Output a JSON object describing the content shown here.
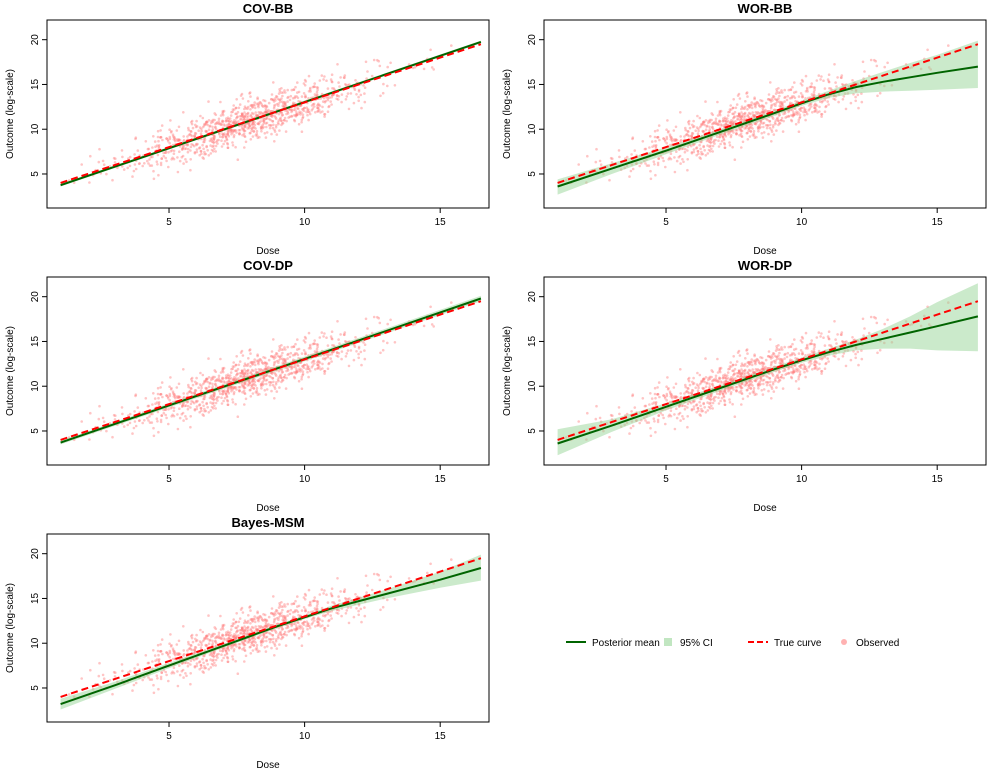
{
  "chart_data": [
    {
      "type": "scatter",
      "title": "COV-BB",
      "xlabel": "Dose",
      "ylabel": "Outcome (log-scale)",
      "xlim": [
        0.5,
        16.8
      ],
      "ylim": [
        1.2,
        22.2
      ],
      "xticks": [
        5,
        10,
        15
      ],
      "yticks": [
        5,
        10,
        15,
        20
      ],
      "series": [
        {
          "name": "Posterior mean",
          "x": [
            1.0,
            16.5
          ],
          "y": [
            3.75,
            19.75
          ]
        },
        {
          "name": "True curve",
          "x": [
            1.0,
            16.5
          ],
          "y": [
            4.0,
            19.5
          ]
        },
        {
          "name": "95% CI",
          "x": [
            1.0,
            16.5
          ],
          "lower": [
            3.6,
            19.6
          ],
          "upper": [
            3.9,
            19.9
          ]
        }
      ]
    },
    {
      "type": "scatter",
      "title": "WOR-BB",
      "xlabel": "Dose",
      "ylabel": "Outcome (log-scale)",
      "xlim": [
        0.5,
        16.8
      ],
      "ylim": [
        1.2,
        22.2
      ],
      "xticks": [
        5,
        10,
        15
      ],
      "yticks": [
        5,
        10,
        15,
        20
      ],
      "series": [
        {
          "name": "Posterior mean",
          "x": [
            1.0,
            3.0,
            5.0,
            7.0,
            9.0,
            10.0,
            11.0,
            12.0,
            13.0,
            14.0,
            15.0,
            16.5
          ],
          "y": [
            3.6,
            5.6,
            7.6,
            9.7,
            11.8,
            12.9,
            13.9,
            14.7,
            15.3,
            15.8,
            16.3,
            17.0
          ]
        },
        {
          "name": "True curve",
          "x": [
            1.0,
            16.5
          ],
          "y": [
            4.0,
            19.5
          ]
        },
        {
          "name": "95% CI",
          "x": [
            1.0,
            3.0,
            5.0,
            7.0,
            9.0,
            10.0,
            11.0,
            12.0,
            13.0,
            14.0,
            15.0,
            16.5
          ],
          "lower": [
            2.7,
            5.0,
            7.2,
            9.4,
            11.5,
            12.6,
            13.5,
            14.0,
            14.2,
            14.3,
            14.4,
            14.6
          ],
          "upper": [
            4.4,
            6.2,
            8.0,
            10.0,
            12.1,
            13.2,
            14.3,
            15.4,
            16.4,
            17.4,
            18.3,
            19.9
          ]
        }
      ]
    },
    {
      "type": "scatter",
      "title": "COV-DP",
      "xlabel": "Dose",
      "ylabel": "Outcome (log-scale)",
      "xlim": [
        0.5,
        16.8
      ],
      "ylim": [
        1.2,
        22.2
      ],
      "xticks": [
        5,
        10,
        15
      ],
      "yticks": [
        5,
        10,
        15,
        20
      ],
      "series": [
        {
          "name": "Posterior mean",
          "x": [
            1.0,
            16.5
          ],
          "y": [
            3.7,
            19.8
          ]
        },
        {
          "name": "True curve",
          "x": [
            1.0,
            16.5
          ],
          "y": [
            4.0,
            19.5
          ]
        },
        {
          "name": "95% CI",
          "x": [
            1.0,
            16.5
          ],
          "lower": [
            3.5,
            19.5
          ],
          "upper": [
            3.9,
            20.1
          ]
        }
      ]
    },
    {
      "type": "scatter",
      "title": "WOR-DP",
      "xlabel": "Dose",
      "ylabel": "Outcome (log-scale)",
      "xlim": [
        0.5,
        16.8
      ],
      "ylim": [
        1.2,
        22.2
      ],
      "xticks": [
        5,
        10,
        15
      ],
      "yticks": [
        5,
        10,
        15,
        20
      ],
      "series": [
        {
          "name": "Posterior mean",
          "x": [
            1.0,
            3.0,
            5.0,
            7.0,
            9.0,
            10.0,
            11.0,
            12.0,
            13.0,
            14.0,
            15.0,
            16.5
          ],
          "y": [
            3.6,
            5.6,
            7.7,
            9.8,
            11.9,
            12.9,
            13.8,
            14.6,
            15.3,
            16.0,
            16.7,
            17.8
          ]
        },
        {
          "name": "True curve",
          "x": [
            1.0,
            16.5
          ],
          "y": [
            4.0,
            19.5
          ]
        },
        {
          "name": "95% CI",
          "x": [
            1.0,
            3.0,
            5.0,
            7.0,
            9.0,
            10.0,
            11.0,
            12.0,
            13.0,
            14.0,
            15.0,
            16.5
          ],
          "lower": [
            2.3,
            4.9,
            7.3,
            9.5,
            11.6,
            12.6,
            13.4,
            14.0,
            14.2,
            14.2,
            14.0,
            13.9
          ],
          "upper": [
            5.2,
            6.3,
            8.1,
            10.1,
            12.2,
            13.2,
            14.2,
            15.2,
            16.4,
            17.8,
            19.4,
            21.5
          ]
        }
      ]
    },
    {
      "type": "scatter",
      "title": "Bayes-MSM",
      "xlabel": "Dose",
      "ylabel": "Outcome (log-scale)",
      "xlim": [
        0.5,
        16.8
      ],
      "ylim": [
        1.2,
        22.2
      ],
      "xticks": [
        5,
        10,
        15
      ],
      "yticks": [
        5,
        10,
        15,
        20
      ],
      "series": [
        {
          "name": "Posterior mean",
          "x": [
            1.0,
            3.0,
            5.0,
            7.0,
            9.0,
            10.0,
            11.0,
            12.0,
            13.0,
            14.0,
            15.0,
            16.5
          ],
          "y": [
            3.2,
            5.3,
            7.5,
            9.7,
            11.9,
            12.9,
            13.9,
            14.7,
            15.5,
            16.3,
            17.1,
            18.4
          ]
        },
        {
          "name": "True curve",
          "x": [
            1.0,
            16.5
          ],
          "y": [
            4.0,
            19.5
          ]
        },
        {
          "name": "95% CI",
          "x": [
            1.0,
            3.0,
            5.0,
            7.0,
            9.0,
            10.0,
            11.0,
            12.0,
            13.0,
            14.0,
            15.0,
            16.5
          ],
          "lower": [
            2.6,
            4.9,
            7.2,
            9.5,
            11.7,
            12.7,
            13.6,
            14.3,
            15.0,
            15.6,
            16.2,
            17.0
          ],
          "upper": [
            3.8,
            5.7,
            7.8,
            9.9,
            12.1,
            13.1,
            14.2,
            15.1,
            16.0,
            17.0,
            18.0,
            19.9
          ]
        }
      ]
    }
  ],
  "legend": {
    "items": [
      {
        "label": "Posterior mean",
        "kind": "line",
        "color": "#006400"
      },
      {
        "label": "95% CI",
        "kind": "fill",
        "color": "#98d598"
      },
      {
        "label": "True curve",
        "kind": "dash",
        "color": "#ff0000"
      },
      {
        "label": "Observed",
        "kind": "point",
        "color": "#ff7f7f"
      }
    ]
  },
  "colors": {
    "posterior": "#006400",
    "truth": "#ff0000",
    "ci": "#98d598",
    "observed": "#ff7f7f"
  },
  "observed_points": {
    "n": 1000,
    "dose_mean": 8.0,
    "dose_sd": 2.3,
    "intercept": 3.0,
    "slope": 1.0,
    "noise_sd": 1.2
  }
}
